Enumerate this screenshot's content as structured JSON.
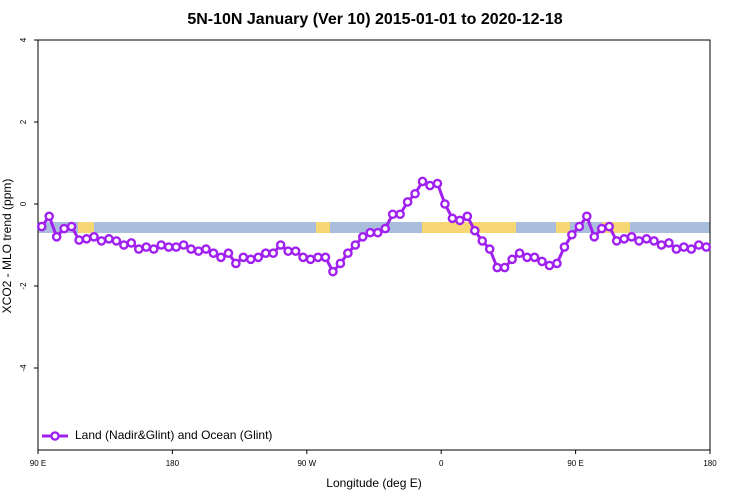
{
  "chart_data": {
    "type": "line",
    "title": "5N-10N January (Ver 10)   2015-01-01 to 2020-12-18",
    "x_label": "Longitude (deg E)",
    "y_label": "XCO2 - MLO trend (ppm)",
    "x": [
      92.5,
      97.5,
      102.5,
      107.5,
      112.5,
      117.5,
      122.5,
      127.5,
      132.5,
      137.5,
      142.5,
      147.5,
      152.5,
      157.5,
      162.5,
      167.5,
      172.5,
      177.5,
      182.5,
      187.5,
      192.5,
      197.5,
      202.5,
      207.5,
      212.5,
      217.5,
      222.5,
      227.5,
      232.5,
      237.5,
      242.5,
      247.5,
      252.5,
      257.5,
      262.5,
      267.5,
      272.5,
      277.5,
      282.5,
      287.5,
      292.5,
      297.5,
      302.5,
      307.5,
      312.5,
      317.5,
      322.5,
      327.5,
      332.5,
      337.5,
      342.5,
      347.5,
      352.5,
      357.5,
      362.5,
      367.5,
      372.5,
      377.5,
      382.5,
      387.5,
      392.5,
      397.5,
      402.5,
      407.5,
      412.5,
      417.5,
      422.5,
      427.5,
      432.5,
      437.5,
      442.5,
      447.5,
      452.5,
      457.5,
      462.5,
      467.5,
      472.5,
      477.5,
      482.5,
      487.5,
      492.5,
      497.5,
      502.5,
      507.5,
      512.5,
      517.5,
      522.5,
      527.5,
      532.5,
      537.5
    ],
    "series": [
      {
        "name": "Land (Nadir&Glint) and Ocean (Glint)",
        "color": "#a020f0",
        "values": [
          -0.55,
          -0.3,
          -0.8,
          -0.6,
          -0.55,
          -0.88,
          -0.85,
          -0.8,
          -0.9,
          -0.85,
          -0.9,
          -1.0,
          -0.95,
          -1.1,
          -1.05,
          -1.1,
          -1.0,
          -1.05,
          -1.05,
          -1.0,
          -1.1,
          -1.15,
          -1.1,
          -1.2,
          -1.3,
          -1.2,
          -1.45,
          -1.3,
          -1.35,
          -1.3,
          -1.2,
          -1.2,
          -1.0,
          -1.15,
          -1.15,
          -1.3,
          -1.35,
          -1.3,
          -1.3,
          -1.65,
          -1.45,
          -1.2,
          -1.0,
          -0.8,
          -0.7,
          -0.7,
          -0.6,
          -0.25,
          -0.25,
          0.05,
          0.25,
          0.55,
          0.45,
          0.5,
          0.0,
          -0.35,
          -0.4,
          -0.3,
          -0.65,
          -0.9,
          -1.1,
          -1.55,
          -1.55,
          -1.35,
          -1.2,
          -1.3,
          -1.3,
          -1.4,
          -1.5,
          -1.45,
          -1.05,
          -0.75,
          -0.55,
          -0.3,
          -0.8,
          -0.6,
          -0.55,
          -0.9,
          -0.85,
          -0.8,
          -0.9,
          -0.85,
          -0.9,
          -1.0,
          -0.95,
          -1.1,
          -1.05,
          -1.1,
          -1.0,
          -1.05
        ]
      }
    ],
    "xlim": [
      90,
      540
    ],
    "xticks": [
      {
        "value": 90,
        "label": "90 E"
      },
      180,
      {
        "value": 270,
        "label": "90 W"
      },
      {
        "value": 360,
        "label": "0"
      },
      {
        "value": 450,
        "label": "90 E"
      },
      180.0001
    ],
    "ylim": [
      -6,
      4
    ],
    "yticks": [
      -4,
      -2,
      0,
      2,
      4
    ],
    "legend": "bottom-left"
  }
}
